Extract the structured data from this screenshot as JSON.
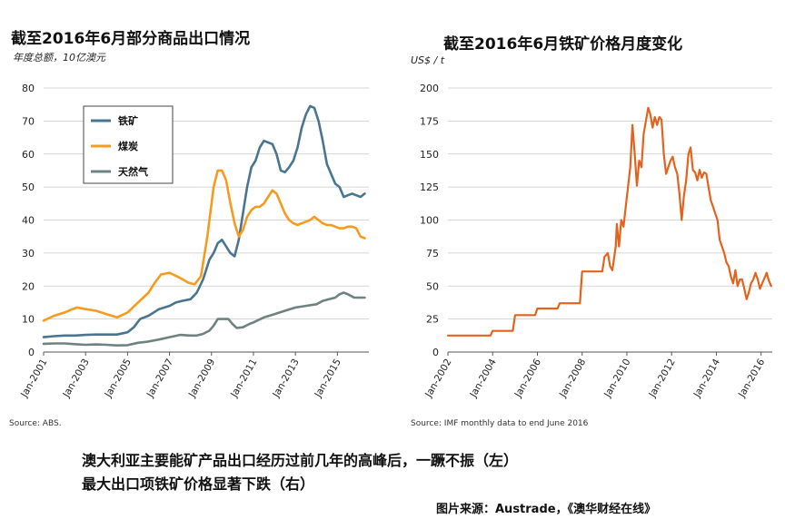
{
  "chart_data": [
    {
      "type": "line",
      "title": "截至2016年6月部分商品出口情况",
      "subtitle": "年度总额，10亿澳元",
      "source": "Source: ABS.",
      "ylim": [
        0,
        80
      ],
      "yticks": [
        0,
        10,
        20,
        30,
        40,
        50,
        60,
        70,
        80
      ],
      "xlim": [
        2001,
        2016.5
      ],
      "xticks": [
        {
          "label": "Jan-2001",
          "value": 2001
        },
        {
          "label": "Jan-2003",
          "value": 2003
        },
        {
          "label": "Jan-2005",
          "value": 2005
        },
        {
          "label": "Jan-2007",
          "value": 2007
        },
        {
          "label": "Jan-2009",
          "value": 2009
        },
        {
          "label": "Jan-2011",
          "value": 2011
        },
        {
          "label": "Jan-2013",
          "value": 2013
        },
        {
          "label": "Jan-2015",
          "value": 2015
        }
      ],
      "grid": true,
      "legend_position": "top-left",
      "series": [
        {
          "name": "铁矿",
          "color": "#4a7590",
          "x": [
            2001,
            2001.5,
            2002,
            2002.5,
            2003,
            2003.5,
            2004,
            2004.5,
            2005,
            2005.3,
            2005.6,
            2006,
            2006.5,
            2007,
            2007.3,
            2007.6,
            2008,
            2008.3,
            2008.6,
            2008.9,
            2009.1,
            2009.3,
            2009.5,
            2009.7,
            2009.9,
            2010.1,
            2010.3,
            2010.5,
            2010.7,
            2010.9,
            2011.1,
            2011.3,
            2011.5,
            2011.7,
            2011.9,
            2012.1,
            2012.3,
            2012.5,
            2012.7,
            2012.9,
            2013.1,
            2013.3,
            2013.5,
            2013.7,
            2013.9,
            2014.1,
            2014.3,
            2014.5,
            2014.7,
            2014.9,
            2015.1,
            2015.3,
            2015.5,
            2015.7,
            2015.9,
            2016.1,
            2016.3
          ],
          "values": [
            4.5,
            4.8,
            5,
            5,
            5.2,
            5.3,
            5.3,
            5.3,
            6,
            7.5,
            10,
            11,
            13,
            14,
            15,
            15.5,
            16,
            18,
            22,
            28,
            30,
            33,
            34,
            32,
            30,
            29,
            34,
            42,
            50,
            56,
            58,
            62,
            64,
            63.5,
            63,
            60,
            55,
            54.5,
            56,
            58,
            62,
            68,
            72,
            74.5,
            74,
            70,
            64,
            57,
            54,
            51,
            50,
            47,
            47.5,
            48,
            47.5,
            47,
            48
          ]
        },
        {
          "name": "煤炭",
          "color": "#f59b1d",
          "x": [
            2001,
            2001.5,
            2002,
            2002.3,
            2002.6,
            2003,
            2003.5,
            2004,
            2004.5,
            2005,
            2005.5,
            2006,
            2006.3,
            2006.6,
            2007,
            2007.5,
            2007.9,
            2008.2,
            2008.5,
            2008.8,
            2009,
            2009.1,
            2009.3,
            2009.5,
            2009.7,
            2009.9,
            2010.1,
            2010.3,
            2010.5,
            2010.7,
            2010.9,
            2011.1,
            2011.3,
            2011.5,
            2011.7,
            2011.9,
            2012.1,
            2012.3,
            2012.5,
            2012.7,
            2012.9,
            2013.1,
            2013.3,
            2013.5,
            2013.7,
            2013.9,
            2014.1,
            2014.3,
            2014.5,
            2014.7,
            2014.9,
            2015.1,
            2015.3,
            2015.5,
            2015.7,
            2015.9,
            2016.1,
            2016.3
          ],
          "values": [
            9.5,
            11,
            12,
            12.8,
            13.5,
            13,
            12.5,
            11.5,
            10.5,
            12,
            15,
            18,
            21,
            23.5,
            24,
            22.5,
            21,
            20.5,
            23,
            35,
            45,
            50,
            55,
            55,
            52,
            45,
            39,
            35,
            37,
            41,
            43,
            44,
            44,
            45,
            47,
            49,
            48,
            45,
            42,
            40,
            39,
            38.5,
            39,
            39.5,
            40,
            41,
            40,
            39,
            38.5,
            38.5,
            38,
            37.5,
            37.5,
            38,
            38,
            37.5,
            35,
            34.5
          ]
        },
        {
          "name": "天然气",
          "color": "#6e8380",
          "x": [
            2001,
            2001.5,
            2002,
            2002.5,
            2003,
            2003.5,
            2004,
            2004.5,
            2005,
            2005.5,
            2006,
            2006.5,
            2007,
            2007.5,
            2008,
            2008.3,
            2008.6,
            2008.9,
            2009.1,
            2009.3,
            2009.6,
            2009.8,
            2010,
            2010.2,
            2010.5,
            2010.8,
            2011,
            2011.5,
            2012,
            2012.5,
            2013,
            2013.5,
            2014,
            2014.3,
            2014.6,
            2014.9,
            2015.1,
            2015.3,
            2015.5,
            2015.8,
            2016,
            2016.3
          ],
          "values": [
            2.5,
            2.6,
            2.6,
            2.4,
            2.2,
            2.3,
            2.2,
            2.0,
            2.1,
            2.8,
            3.2,
            3.8,
            4.5,
            5.2,
            5.0,
            5.0,
            5.5,
            6.5,
            8,
            10,
            10,
            10,
            8.5,
            7.3,
            7.5,
            8.5,
            9,
            10.5,
            11.5,
            12.5,
            13.5,
            14,
            14.5,
            15.5,
            16,
            16.5,
            17.5,
            18,
            17.5,
            16.5,
            16.5,
            16.5
          ]
        }
      ]
    },
    {
      "type": "line",
      "title": "截至2016年6月铁矿价格月度变化",
      "ylabel": "US$ / t",
      "source": "Source: IMF monthly data to end June 2016",
      "ylim": [
        0,
        200
      ],
      "yticks": [
        0,
        25,
        50,
        75,
        100,
        125,
        150,
        175,
        200
      ],
      "xlim": [
        2002,
        2016.5
      ],
      "xticks": [
        {
          "label": "Jan-2002",
          "value": 2002
        },
        {
          "label": "Jan-2004",
          "value": 2004
        },
        {
          "label": "Jan-2006",
          "value": 2006
        },
        {
          "label": "Jan-2008",
          "value": 2008
        },
        {
          "label": "Jan-2010",
          "value": 2010
        },
        {
          "label": "Jan-2012",
          "value": 2012
        },
        {
          "label": "Jan-2014",
          "value": 2014
        },
        {
          "label": "Jan-2016",
          "value": 2016
        }
      ],
      "grid": true,
      "series": [
        {
          "name": "铁矿价格",
          "color": "#e3631e",
          "x": [
            2002,
            2003.9,
            2004,
            2004.9,
            2005,
            2005.9,
            2006,
            2006.9,
            2007,
            2007.9,
            2008,
            2008.9,
            2009,
            2009.15,
            2009.25,
            2009.35,
            2009.5,
            2009.55,
            2009.65,
            2009.75,
            2009.85,
            2009.95,
            2010.05,
            2010.15,
            2010.25,
            2010.35,
            2010.45,
            2010.55,
            2010.65,
            2010.75,
            2010.85,
            2010.95,
            2011.05,
            2011.15,
            2011.25,
            2011.35,
            2011.45,
            2011.55,
            2011.65,
            2011.75,
            2011.85,
            2011.95,
            2012.05,
            2012.15,
            2012.25,
            2012.35,
            2012.45,
            2012.55,
            2012.65,
            2012.75,
            2012.85,
            2012.95,
            2013.05,
            2013.15,
            2013.25,
            2013.35,
            2013.45,
            2013.55,
            2013.65,
            2013.75,
            2013.85,
            2013.95,
            2014.05,
            2014.15,
            2014.25,
            2014.35,
            2014.45,
            2014.55,
            2014.65,
            2014.75,
            2014.85,
            2014.95,
            2015.05,
            2015.15,
            2015.25,
            2015.35,
            2015.45,
            2015.55,
            2015.65,
            2015.75,
            2015.85,
            2015.95,
            2016.05,
            2016.15,
            2016.25,
            2016.35,
            2016.45
          ],
          "values": [
            12.5,
            12.5,
            16,
            16,
            28,
            28,
            33,
            33,
            37,
            37,
            61,
            61,
            72,
            75,
            65,
            62,
            80,
            97,
            80,
            100,
            95,
            110,
            125,
            140,
            172,
            150,
            126,
            145,
            140,
            165,
            175,
            185,
            180,
            170,
            178,
            172,
            178,
            176,
            150,
            135,
            140,
            145,
            148,
            140,
            135,
            120,
            100,
            118,
            130,
            150,
            155,
            138,
            136,
            130,
            138,
            132,
            136,
            135,
            125,
            115,
            110,
            105,
            100,
            85,
            80,
            75,
            68,
            65,
            57,
            52,
            62,
            50,
            55,
            55,
            48,
            40,
            45,
            52,
            55,
            60,
            55,
            48,
            52,
            56,
            60,
            54,
            50
          ]
        }
      ]
    }
  ],
  "caption": {
    "line1": "澳大利亚主要能矿产品出口经历过前几年的高峰后，一蹶不振（左）",
    "line2": "最大出口项铁矿价格显著下跌（右）"
  },
  "credit": "图片来源：Austrade，《澳华财经在线》"
}
